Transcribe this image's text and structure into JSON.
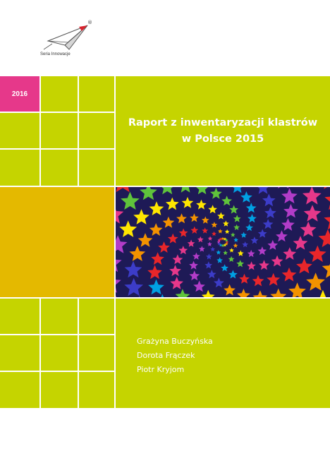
{
  "brand": {
    "logo_icon": "paper-plane-icon",
    "series_label": "Seria Innowacje",
    "registered_mark": "®"
  },
  "cover": {
    "year": "2016",
    "title_line1": "Raport z inwentaryzacji klastrów",
    "title_line2": "w Polsce 2015",
    "authors": [
      "Grażyna Buczyńska",
      "Dorota Frączek",
      "Piotr Kryjom"
    ],
    "image": "colorful-star-spiral"
  },
  "colors": {
    "lime": "#c5d400",
    "pink": "#e6388a",
    "orange": "#e4b900",
    "navy": "#1e1a56"
  }
}
